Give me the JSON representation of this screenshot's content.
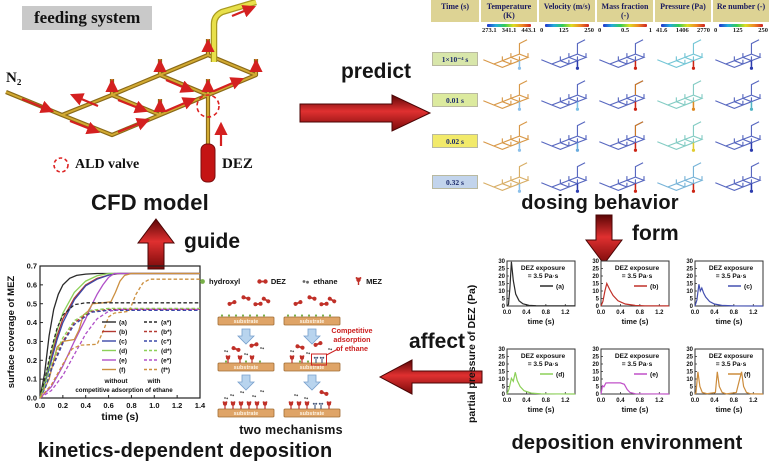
{
  "feeding": {
    "label": "feeding system",
    "n2": "N₂",
    "ald_valve": "ALD valve",
    "dez": "DEZ",
    "caption": "CFD model"
  },
  "flow": {
    "predict": "predict",
    "form": "form",
    "affect": "affect",
    "guide": "guide"
  },
  "dosing": {
    "caption": "dosing behavior",
    "time_header": "Time (s)",
    "columns": [
      {
        "header": "Temperature (K)",
        "ticks": [
          "273.1",
          "341.1",
          "443.1"
        ]
      },
      {
        "header": "Velocity (m/s)",
        "ticks": [
          "0",
          "125",
          "250"
        ]
      },
      {
        "header": "Mass fraction (-)",
        "ticks": [
          "0",
          "0.5",
          "1"
        ]
      },
      {
        "header": "Pressure (Pa)",
        "ticks": [
          "41.6",
          "1406",
          "2770"
        ]
      },
      {
        "header": "Re number (-)",
        "ticks": [
          "0",
          "125",
          "250"
        ]
      }
    ],
    "rows": [
      {
        "time": "1×10⁻⁴ s",
        "badge": "#d8e6aa",
        "pipes": [
          {
            "c": "#d89848",
            "s": "#8cc0ea"
          },
          {
            "c": "#5868c0",
            "s": "#2c3cae"
          },
          {
            "c": "#5868c0",
            "s": "#cc2414"
          },
          {
            "c": "#74c6d6",
            "s": "#cc2414"
          },
          {
            "c": "#5868c0",
            "s": "#2c3cae"
          }
        ]
      },
      {
        "time": "0.01 s",
        "badge": "#dcea9e",
        "pipes": [
          {
            "c": "#d89848",
            "s": "#8cc0ea"
          },
          {
            "c": "#5868c0",
            "s": "#7cc0e6"
          },
          {
            "c": "#5868c0",
            "s": "#cc2414",
            "e": "#cc7722"
          },
          {
            "c": "#84ccc4",
            "s": "#dd8822"
          },
          {
            "c": "#5868c0",
            "s": "#52b4c4"
          }
        ]
      },
      {
        "time": "0.02 s",
        "badge": "#f2ea6a",
        "pipes": [
          {
            "c": "#d89848",
            "s": "#8cc0ea"
          },
          {
            "c": "#5868c0",
            "s": "#68aade"
          },
          {
            "c": "#5868c0",
            "s": "#cc2414",
            "e": "#cc7722"
          },
          {
            "c": "#84ccc4",
            "s": "#e0cc30"
          },
          {
            "c": "#5868c0",
            "s": "#2c3cae"
          }
        ]
      },
      {
        "time": "0.32 s",
        "badge": "#c2d4ec",
        "pipes": [
          {
            "c": "#d8ae66",
            "s": "#8cc0ea"
          },
          {
            "c": "#5868c0",
            "s": "#2c3cae"
          },
          {
            "c": "#5868c0",
            "s": "#cc2414"
          },
          {
            "c": "#78b4d8",
            "s": "#cc2414"
          },
          {
            "c": "#5868c0",
            "s": "#2c3cae"
          }
        ]
      }
    ]
  },
  "mechanisms": {
    "legend": [
      {
        "name": "hydroxyl",
        "marker": "hydroxyl-icon",
        "color": "#78b048"
      },
      {
        "name": "DEZ",
        "marker": "dez-molecule-icon",
        "color": "#c03028"
      },
      {
        "name": "ethane",
        "marker": "ethane-icon",
        "color": "#666666"
      },
      {
        "name": "MEZ",
        "marker": "mez-icon",
        "color": "#c03028"
      }
    ],
    "substrate": "substrate",
    "annotation": [
      "Competitive",
      "adsorption",
      "of ethane"
    ],
    "caption": "two mechanisms"
  },
  "deposition": {
    "caption": "deposition environment"
  },
  "kinetics": {
    "caption": "kinetics-dependent deposition"
  },
  "chart_data": [
    {
      "id": "kinetics",
      "type": "line",
      "title": "",
      "xlabel": "time (s)",
      "ylabel": "surface coverage of MEZ",
      "xlim": [
        0,
        1.4
      ],
      "ylim": [
        0,
        0.7
      ],
      "xticks": [
        "0.0",
        "0.2",
        "0.4",
        "0.6",
        "0.8",
        "1.0",
        "1.2",
        "1.4"
      ],
      "yticks": [
        "0.0",
        "0.1",
        "0.2",
        "0.3",
        "0.4",
        "0.5",
        "0.6",
        "0.7"
      ],
      "legend_footer": [
        "without",
        "with",
        "competitive adsorption of ethane"
      ],
      "series": [
        {
          "name": "(a)",
          "color": "#2a2a2a",
          "dash": false,
          "x": [
            0,
            0.04,
            0.08,
            0.12,
            0.16,
            0.2,
            0.26,
            0.32,
            0.4,
            0.5,
            1.4
          ],
          "y": [
            0,
            0.13,
            0.33,
            0.47,
            0.55,
            0.6,
            0.635,
            0.65,
            0.657,
            0.66,
            0.66
          ]
        },
        {
          "name": "(b)",
          "color": "#b43a32",
          "dash": false,
          "x": [
            0,
            0.05,
            0.1,
            0.15,
            0.2,
            0.3,
            0.4,
            0.5,
            0.6,
            0.7,
            1.4
          ],
          "y": [
            0,
            0.1,
            0.22,
            0.33,
            0.42,
            0.53,
            0.6,
            0.635,
            0.652,
            0.66,
            0.66
          ]
        },
        {
          "name": "(c)",
          "color": "#3c48a8",
          "dash": false,
          "x": [
            0,
            0.05,
            0.1,
            0.15,
            0.2,
            0.3,
            0.4,
            0.5,
            0.6,
            0.68,
            1.4
          ],
          "y": [
            0,
            0.09,
            0.2,
            0.31,
            0.4,
            0.52,
            0.595,
            0.63,
            0.652,
            0.66,
            0.66
          ]
        },
        {
          "name": "(d)",
          "color": "#8cd058",
          "dash": false,
          "x": [
            0,
            0.05,
            0.1,
            0.15,
            0.2,
            0.3,
            0.4,
            0.5,
            0.6,
            1.4
          ],
          "y": [
            0,
            0.11,
            0.24,
            0.36,
            0.45,
            0.56,
            0.62,
            0.648,
            0.66,
            0.66
          ]
        },
        {
          "name": "(e)",
          "color": "#b050c8",
          "dash": false,
          "x": [
            0,
            0.1,
            0.2,
            0.3,
            0.35,
            0.4,
            0.45,
            0.5,
            0.55,
            0.6,
            0.65,
            1.4
          ],
          "y": [
            0,
            0.06,
            0.17,
            0.3,
            0.36,
            0.42,
            0.49,
            0.55,
            0.6,
            0.64,
            0.66,
            0.66
          ]
        },
        {
          "name": "(f)",
          "color": "#cc9040",
          "dash": false,
          "x": [
            0,
            0.08,
            0.15,
            0.2,
            0.3,
            0.34,
            0.38,
            0.42,
            0.46,
            0.55,
            0.62,
            0.66,
            0.7,
            0.74,
            0.8,
            1.4
          ],
          "y": [
            0,
            0.1,
            0.27,
            0.3,
            0.31,
            0.36,
            0.44,
            0.46,
            0.5,
            0.505,
            0.51,
            0.56,
            0.62,
            0.65,
            0.66,
            0.66
          ]
        },
        {
          "name": "(a*)",
          "color": "#2a2a2a",
          "dash": true,
          "x": [
            0,
            0.05,
            0.1,
            0.15,
            0.2,
            0.3,
            0.4,
            1.4
          ],
          "y": [
            0,
            0.12,
            0.26,
            0.37,
            0.44,
            0.495,
            0.505,
            0.505
          ]
        },
        {
          "name": "(b*)",
          "color": "#b43a32",
          "dash": true,
          "x": [
            0,
            0.05,
            0.1,
            0.2,
            0.3,
            0.45,
            0.6,
            1.4
          ],
          "y": [
            0,
            0.07,
            0.16,
            0.3,
            0.4,
            0.46,
            0.47,
            0.47
          ]
        },
        {
          "name": "(c*)",
          "color": "#3c48a8",
          "dash": true,
          "x": [
            0,
            0.05,
            0.1,
            0.2,
            0.3,
            0.45,
            0.6,
            1.4
          ],
          "y": [
            0,
            0.06,
            0.15,
            0.29,
            0.39,
            0.455,
            0.465,
            0.465
          ]
        },
        {
          "name": "(d*)",
          "color": "#8cd058",
          "dash": true,
          "x": [
            0,
            0.05,
            0.1,
            0.2,
            0.3,
            0.45,
            0.6,
            1.4
          ],
          "y": [
            0,
            0.08,
            0.18,
            0.32,
            0.41,
            0.465,
            0.475,
            0.475
          ]
        },
        {
          "name": "(e*)",
          "color": "#b050c8",
          "dash": true,
          "x": [
            0,
            0.1,
            0.2,
            0.3,
            0.4,
            0.5,
            0.6,
            0.7,
            1.4
          ],
          "y": [
            0,
            0.04,
            0.12,
            0.23,
            0.34,
            0.42,
            0.46,
            0.47,
            0.47
          ]
        },
        {
          "name": "(f*)",
          "color": "#cc9040",
          "dash": true,
          "x": [
            0,
            0.1,
            0.2,
            0.28,
            0.35,
            0.5,
            0.55,
            0.6,
            0.65,
            0.78,
            0.84,
            0.9,
            0.96,
            1.4
          ],
          "y": [
            0,
            0.07,
            0.18,
            0.26,
            0.28,
            0.285,
            0.35,
            0.43,
            0.45,
            0.46,
            0.55,
            0.61,
            0.63,
            0.63
          ]
        }
      ]
    },
    {
      "id": "dez_pressure",
      "type": "line",
      "xlabel": "time (s)",
      "ylabel": "partial pressure of DEZ (Pa)",
      "xlim": [
        0,
        1.4
      ],
      "ylim": [
        0,
        30
      ],
      "xticks": [
        "0.0",
        "0.4",
        "0.8",
        "1.2"
      ],
      "yticks": [
        "0",
        "5",
        "10",
        "15",
        "20",
        "25",
        "30"
      ],
      "annotation": [
        "DEZ exposure",
        "= 3.5 Pa·s"
      ],
      "plots": [
        {
          "name": "(a)",
          "color": "#2a2a2a",
          "x": [
            0,
            0.03,
            0.06,
            0.09,
            0.13,
            0.18,
            0.25,
            0.33,
            0.45,
            0.6,
            1.4
          ],
          "y": [
            0,
            1,
            12,
            29.5,
            17,
            8,
            3.5,
            1.5,
            0.5,
            0.2,
            0.1
          ]
        },
        {
          "name": "(b)",
          "color": "#c03028",
          "x": [
            0,
            0.04,
            0.08,
            0.12,
            0.18,
            0.25,
            0.35,
            0.5,
            0.7,
            0.9,
            1.4
          ],
          "y": [
            0,
            3,
            10,
            15,
            11,
            7,
            3.5,
            1.3,
            0.4,
            0.15,
            0.05
          ]
        },
        {
          "name": "(c)",
          "color": "#4450b0",
          "x": [
            0,
            0.04,
            0.08,
            0.11,
            0.14,
            0.18,
            0.22,
            0.3,
            0.4,
            0.55,
            0.8,
            1.4
          ],
          "y": [
            0,
            4,
            14.5,
            10,
            12,
            8.5,
            6,
            3,
            1.3,
            0.4,
            0.1,
            0
          ]
        },
        {
          "name": "(d)",
          "color": "#8cd058",
          "x": [
            0,
            0.04,
            0.09,
            0.13,
            0.17,
            0.21,
            0.27,
            0.35,
            0.5,
            0.7,
            1.4
          ],
          "y": [
            0,
            3,
            10.5,
            8.5,
            14.5,
            9,
            5,
            2.2,
            0.6,
            0.15,
            0
          ]
        },
        {
          "name": "(e)",
          "color": "#c050c8",
          "x": [
            0,
            0.03,
            0.06,
            0.1,
            0.15,
            0.25,
            0.4,
            0.48,
            0.54,
            0.6,
            0.7,
            1.4
          ],
          "y": [
            0,
            5.5,
            4.8,
            7.3,
            7.4,
            7.4,
            7.4,
            6.5,
            3,
            1,
            0.2,
            0
          ]
        },
        {
          "name": "(f)",
          "color": "#cc8c3c",
          "x": [
            0,
            0.02,
            0.06,
            0.1,
            0.15,
            0.25,
            0.42,
            0.46,
            0.5,
            0.56,
            0.65,
            0.85,
            0.92,
            0.96,
            1.0,
            1.06,
            1.15,
            1.4
          ],
          "y": [
            0,
            1,
            14.8,
            5,
            1,
            0.2,
            1,
            14.8,
            5,
            1,
            0.1,
            1,
            10,
            14.8,
            5,
            1,
            0.1,
            0
          ]
        }
      ]
    }
  ]
}
